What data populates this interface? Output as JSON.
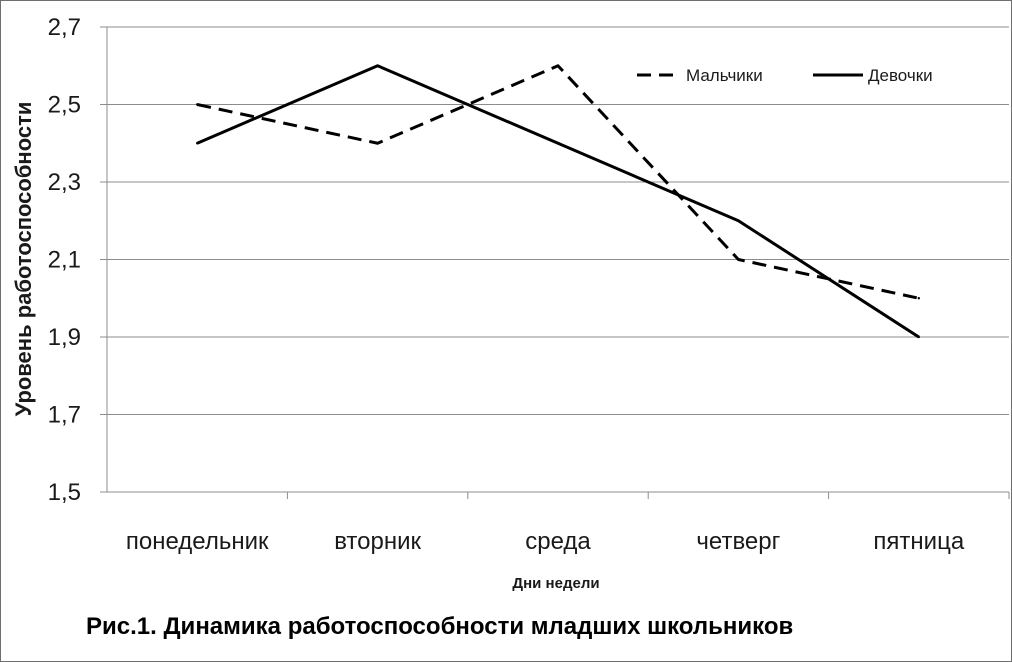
{
  "chart_data": {
    "type": "line",
    "caption": "Рис.1. Динамика работоспособности младших школьников",
    "xlabel": "Дни недели",
    "ylabel": "Уровень работоспособности",
    "categories": [
      "понедельник",
      "вторник",
      "среда",
      "четверг",
      "пятница"
    ],
    "ylim": [
      1.5,
      2.7
    ],
    "yticks": [
      "1,5",
      "1,7",
      "1,9",
      "2,1",
      "2,3",
      "2,5",
      "2,7"
    ],
    "grid": "horizontal",
    "legend_position": "top-right",
    "series": [
      {
        "name": "Мальчики",
        "style": "dashed",
        "color": "#000000",
        "values": [
          2.5,
          2.4,
          2.6,
          2.1,
          2.0
        ]
      },
      {
        "name": "Девочки",
        "style": "solid",
        "color": "#000000",
        "values": [
          2.4,
          2.6,
          2.4,
          2.2,
          1.9
        ]
      }
    ]
  }
}
